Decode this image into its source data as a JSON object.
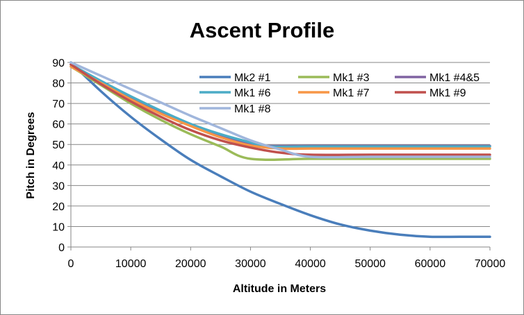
{
  "chart_data": {
    "type": "line",
    "title": "Ascent Profile",
    "xlabel": "Altitude in Meters",
    "ylabel": "Pitch in Degrees",
    "xlim": [
      0,
      70000
    ],
    "ylim": [
      0,
      90
    ],
    "x_ticks": [
      0,
      10000,
      20000,
      30000,
      40000,
      50000,
      60000,
      70000
    ],
    "y_ticks": [
      0,
      10,
      20,
      30,
      40,
      50,
      60,
      70,
      80,
      90
    ],
    "grid": "horizontal",
    "legend_position": "top-right",
    "series": [
      {
        "name": "Mk2 #1",
        "color": "#4a7ebb",
        "x": [
          0,
          5000,
          10000,
          15000,
          20000,
          25000,
          30000,
          35000,
          40000,
          45000,
          50000,
          55000,
          60000,
          65000,
          70000
        ],
        "y": [
          90,
          76,
          63.5,
          52.5,
          42.5,
          34.5,
          27,
          21,
          15.5,
          11,
          8,
          6,
          5,
          5,
          5
        ]
      },
      {
        "name": "Mk1 #3",
        "color": "#9bbb59",
        "x": [
          0,
          5000,
          10000,
          15000,
          20000,
          25000,
          30000,
          40000,
          50000,
          60000,
          70000
        ],
        "y": [
          88,
          79,
          70,
          62,
          55,
          49,
          43,
          43,
          43,
          43,
          43
        ]
      },
      {
        "name": "Mk1 #4&5",
        "color": "#8064a2",
        "x": [
          0,
          5000,
          10000,
          15000,
          20000,
          25000,
          30000,
          32500,
          40000,
          50000,
          60000,
          70000
        ],
        "y": [
          89,
          80.5,
          72.5,
          65.5,
          59.5,
          54,
          50.5,
          49.3,
          49.3,
          49.3,
          49.3,
          49.3
        ]
      },
      {
        "name": "Mk1 #6",
        "color": "#4bacc6",
        "x": [
          0,
          5000,
          10000,
          15000,
          20000,
          25000,
          30000,
          33000,
          40000,
          50000,
          60000,
          70000
        ],
        "y": [
          89,
          81,
          73.5,
          66.5,
          60,
          55,
          51,
          49,
          49,
          49,
          49,
          49
        ]
      },
      {
        "name": "Mk1 #7",
        "color": "#f79646",
        "x": [
          0,
          5000,
          10000,
          15000,
          20000,
          25000,
          30000,
          35000,
          40000,
          50000,
          60000,
          70000
        ],
        "y": [
          88,
          80,
          72,
          65,
          59,
          53.5,
          49.5,
          48,
          48,
          48,
          48,
          48
        ]
      },
      {
        "name": "Mk1 #9",
        "color": "#c0504d",
        "x": [
          0,
          5000,
          10000,
          15000,
          20000,
          25000,
          30000,
          35000,
          40000,
          50000,
          60000,
          70000
        ],
        "y": [
          89,
          79.5,
          71,
          63.5,
          57,
          52,
          48.5,
          46,
          45,
          45,
          45,
          45
        ]
      },
      {
        "name": "Mk1 #8",
        "color": "#a0b6dc",
        "x": [
          0,
          5000,
          10000,
          15000,
          20000,
          25000,
          30000,
          35000,
          40000,
          50000,
          60000,
          70000
        ],
        "y": [
          90,
          83.5,
          77,
          70.5,
          64,
          58,
          52,
          47.5,
          44,
          44,
          44,
          44
        ]
      }
    ]
  }
}
